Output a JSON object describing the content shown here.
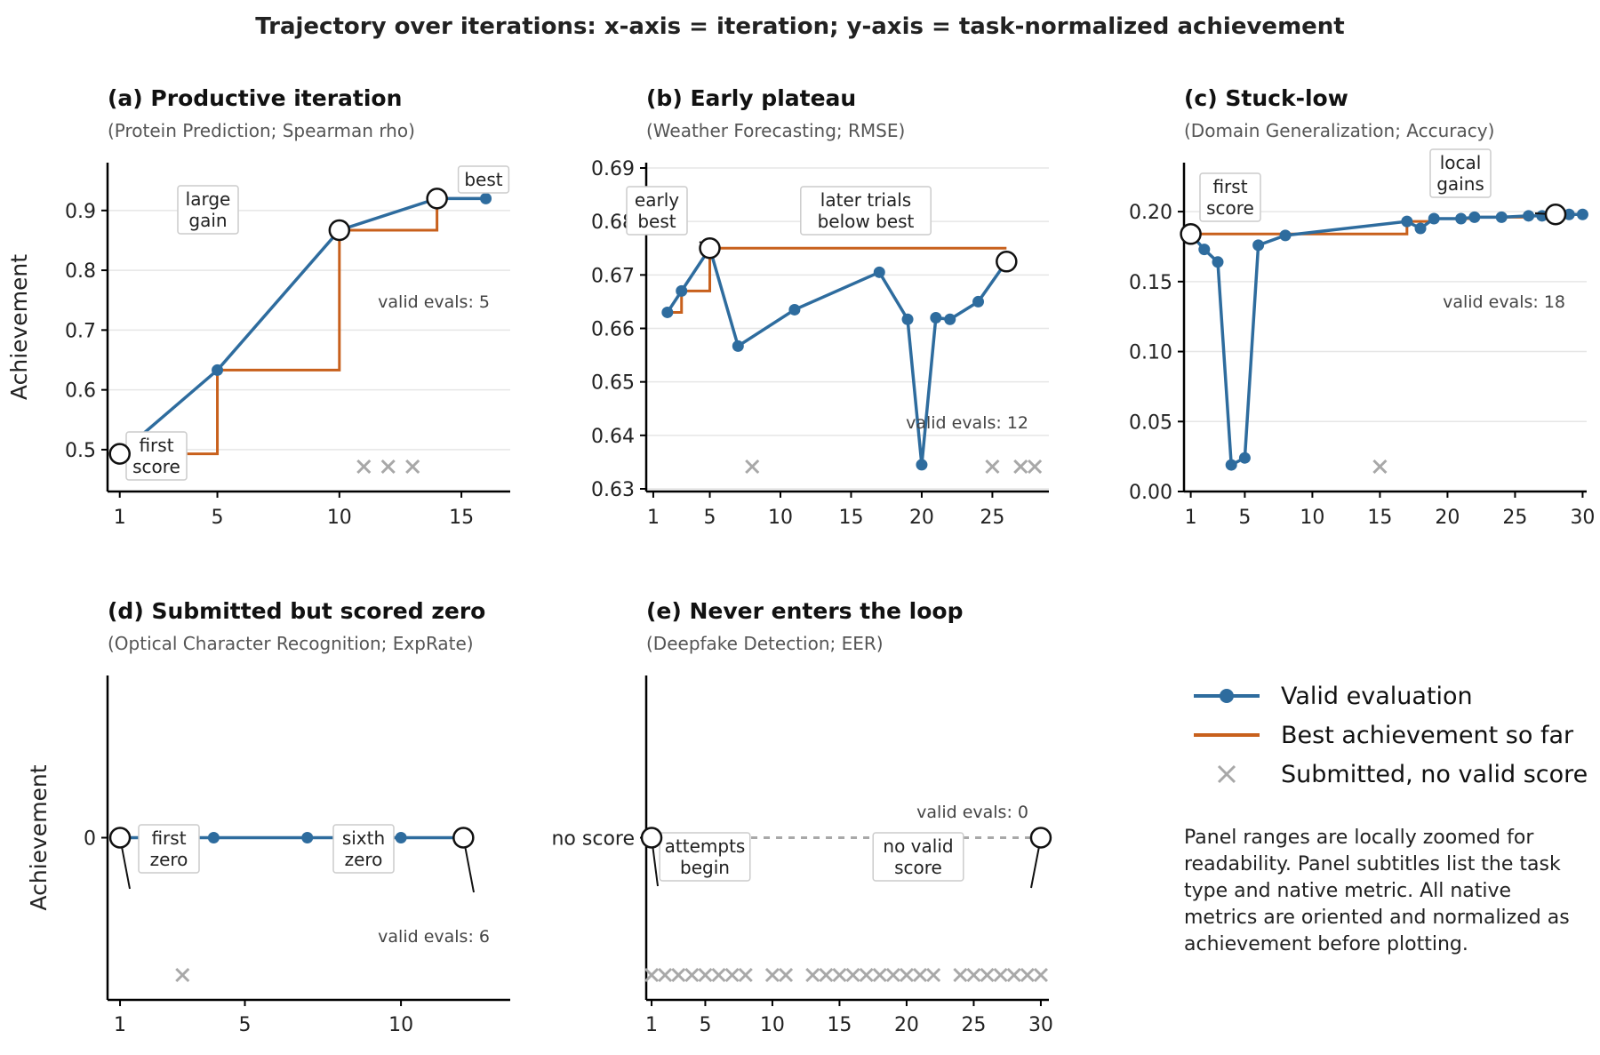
{
  "figure_title": "Trajectory over iterations: x-axis = iteration; y-axis = task-normalized achievement",
  "colors": {
    "valid": "#2e6c9e",
    "best": "#c8601c",
    "fail": "#a8a8a8",
    "grid": "#e6e6e6",
    "axis": "#000000"
  },
  "legend": {
    "items": [
      {
        "label": "Valid evaluation",
        "kind": "line-marker",
        "color": "#2e6c9e"
      },
      {
        "label": "Best achievement so far",
        "kind": "line",
        "color": "#c8601c"
      },
      {
        "label": "Submitted, no valid score",
        "kind": "x-marker",
        "color": "#a8a8a8"
      }
    ],
    "note": "Panel ranges are locally zoomed for readability. Panel subtitles list the task type and native metric. All native metrics are oriented and normalized as achievement before plotting."
  },
  "chart_data": [
    {
      "id": "a",
      "type": "line",
      "title": "(a) Productive iteration",
      "subtitle": "(Protein Prediction; Spearman rho)",
      "ylabel": "Achievement",
      "xlim": [
        0.5,
        17
      ],
      "ylim": [
        0.43,
        0.98
      ],
      "xticks": [
        1,
        5,
        10,
        15
      ],
      "yticks": [
        0.5,
        0.6,
        0.7,
        0.8,
        0.9
      ],
      "ytick_labels": [
        "0.5",
        "0.6",
        "0.7",
        "0.8",
        "0.9"
      ],
      "grid": true,
      "valid": {
        "x": [
          1,
          5,
          10,
          14,
          16
        ],
        "y": [
          0.493,
          0.633,
          0.867,
          0.92,
          0.92
        ]
      },
      "best_so_far": {
        "x": [
          1,
          5,
          10,
          14,
          16
        ],
        "y": [
          0.493,
          0.633,
          0.867,
          0.92,
          0.92
        ]
      },
      "failed_x": [
        2,
        11,
        12,
        13
      ],
      "highlights": [
        {
          "x": 1,
          "y": 0.493
        },
        {
          "x": 10,
          "y": 0.867
        },
        {
          "x": 14,
          "y": 0.92
        }
      ],
      "annotations": [
        {
          "text": [
            "first",
            "score"
          ],
          "x": 1,
          "y": 0.493
        },
        {
          "text": [
            "large",
            "gain"
          ],
          "x": 10,
          "y": 0.867
        },
        {
          "text": [
            "best"
          ],
          "x": 14,
          "y": 0.92
        }
      ],
      "valid_count_label": "valid evals: 5"
    },
    {
      "id": "b",
      "type": "line",
      "title": "(b) Early plateau",
      "subtitle": "(Weather Forecasting; RMSE)",
      "xlim": [
        0.5,
        29
      ],
      "ylim": [
        0.6295,
        0.691
      ],
      "xticks": [
        1,
        5,
        10,
        15,
        20,
        25
      ],
      "yticks": [
        0.63,
        0.64,
        0.65,
        0.66,
        0.67,
        0.68,
        0.69
      ],
      "ytick_labels": [
        "0.63",
        "0.64",
        "0.65",
        "0.66",
        "0.67",
        "0.68",
        "0.69"
      ],
      "grid": true,
      "valid": {
        "x": [
          2,
          3,
          5,
          7,
          11,
          17,
          19,
          20,
          21,
          22,
          24,
          26
        ],
        "y": [
          0.663,
          0.667,
          0.675,
          0.6567,
          0.6635,
          0.6705,
          0.6617,
          0.6345,
          0.662,
          0.6617,
          0.665,
          0.6725
        ]
      },
      "best_so_far": {
        "x": [
          2,
          3,
          5,
          7,
          11,
          17,
          19,
          20,
          21,
          22,
          24,
          26
        ],
        "y": [
          0.663,
          0.667,
          0.675,
          0.675,
          0.675,
          0.675,
          0.675,
          0.675,
          0.675,
          0.675,
          0.675,
          0.675
        ]
      },
      "failed_x": [
        8,
        25,
        27,
        28
      ],
      "highlights": [
        {
          "x": 5,
          "y": 0.675
        },
        {
          "x": 26,
          "y": 0.6725
        }
      ],
      "annotations": [
        {
          "text": [
            "early",
            "best"
          ],
          "x": 5,
          "y": 0.675
        },
        {
          "text": [
            "later trials",
            "below best"
          ],
          "x": 26,
          "y": 0.6725
        }
      ],
      "valid_count_label": "valid evals: 12"
    },
    {
      "id": "c",
      "type": "line",
      "title": "(c) Stuck-low",
      "subtitle": "(Domain Generalization; Accuracy)",
      "xlim": [
        0.5,
        30.3
      ],
      "ylim": [
        0,
        0.235
      ],
      "xticks": [
        1,
        5,
        10,
        15,
        20,
        25,
        30
      ],
      "yticks": [
        0.0,
        0.05,
        0.1,
        0.15,
        0.2
      ],
      "ytick_labels": [
        "0.00",
        "0.05",
        "0.10",
        "0.15",
        "0.20"
      ],
      "grid": true,
      "valid": {
        "x": [
          1,
          2,
          3,
          4,
          5,
          6,
          8,
          17,
          18,
          19,
          21,
          22,
          24,
          26,
          27,
          28,
          29,
          30
        ],
        "y": [
          0.184,
          0.173,
          0.164,
          0.019,
          0.024,
          0.176,
          0.183,
          0.193,
          0.188,
          0.195,
          0.195,
          0.196,
          0.196,
          0.197,
          0.197,
          0.198,
          0.198,
          0.198
        ]
      },
      "best_so_far": {
        "x": [
          1,
          17,
          18,
          19,
          21,
          22,
          24,
          26,
          27,
          28,
          29,
          30
        ],
        "y": [
          0.184,
          0.193,
          0.193,
          0.195,
          0.195,
          0.196,
          0.196,
          0.197,
          0.197,
          0.198,
          0.198,
          0.198
        ]
      },
      "failed_x": [
        15
      ],
      "highlights": [
        {
          "x": 1,
          "y": 0.184
        },
        {
          "x": 28,
          "y": 0.198
        }
      ],
      "annotations": [
        {
          "text": [
            "first",
            "score"
          ],
          "x": 1,
          "y": 0.184
        },
        {
          "text": [
            "local",
            "gains"
          ],
          "x": 28,
          "y": 0.198
        }
      ],
      "valid_count_label": "valid evals: 18"
    },
    {
      "id": "d",
      "type": "line",
      "title": "(d) Submitted but scored zero",
      "subtitle": "(Optical Character Recognition; ExpRate)",
      "ylabel": "Achievement",
      "xlim": [
        0.6,
        13.5
      ],
      "ylim": [
        -0.1,
        0.1
      ],
      "xticks": [
        1,
        5,
        10
      ],
      "yticks": [
        0
      ],
      "ytick_labels": [
        "0"
      ],
      "grid": false,
      "valid": {
        "x": [
          1,
          2,
          4,
          7,
          10,
          12
        ],
        "y": [
          0,
          0,
          0,
          0,
          0,
          0
        ]
      },
      "best_so_far": {
        "x": [
          1,
          12
        ],
        "y": [
          0,
          0
        ]
      },
      "failed_x": [
        3
      ],
      "highlights": [
        {
          "x": 1,
          "y": 0
        },
        {
          "x": 12,
          "y": 0
        }
      ],
      "annotations": [
        {
          "text": [
            "first",
            "zero"
          ],
          "x": 1,
          "y": 0
        },
        {
          "text": [
            "sixth",
            "zero"
          ],
          "x": 12,
          "y": 0
        }
      ],
      "valid_count_label": "valid evals: 6"
    },
    {
      "id": "e",
      "type": "line",
      "title": "(e) Never enters the loop",
      "subtitle": "(Deepfake Detection; EER)",
      "xlim": [
        0.6,
        30.6
      ],
      "ylim": [
        -0.1,
        0.1
      ],
      "xticks": [
        1,
        5,
        10,
        15,
        20,
        25,
        30
      ],
      "yticks": [
        0
      ],
      "ytick_labels": [
        "no score"
      ],
      "grid": false,
      "valid": {
        "x": [],
        "y": []
      },
      "best_so_far": {
        "x": [],
        "y": []
      },
      "no_score_line": {
        "x": [
          1,
          30
        ],
        "y": [
          0,
          0
        ]
      },
      "failed_x": [
        1,
        2,
        3,
        4,
        5,
        6,
        7,
        8,
        10,
        11,
        13,
        14,
        15,
        16,
        17,
        18,
        19,
        20,
        21,
        22,
        24,
        25,
        26,
        27,
        28,
        29,
        30
      ],
      "highlights": [
        {
          "x": 1,
          "y": 0
        },
        {
          "x": 30,
          "y": 0
        }
      ],
      "annotations": [
        {
          "text": [
            "attempts",
            "begin"
          ],
          "x": 1,
          "y": 0
        },
        {
          "text": [
            "no valid",
            "score"
          ],
          "x": 30,
          "y": 0
        }
      ],
      "valid_count_label": "valid evals: 0"
    }
  ]
}
